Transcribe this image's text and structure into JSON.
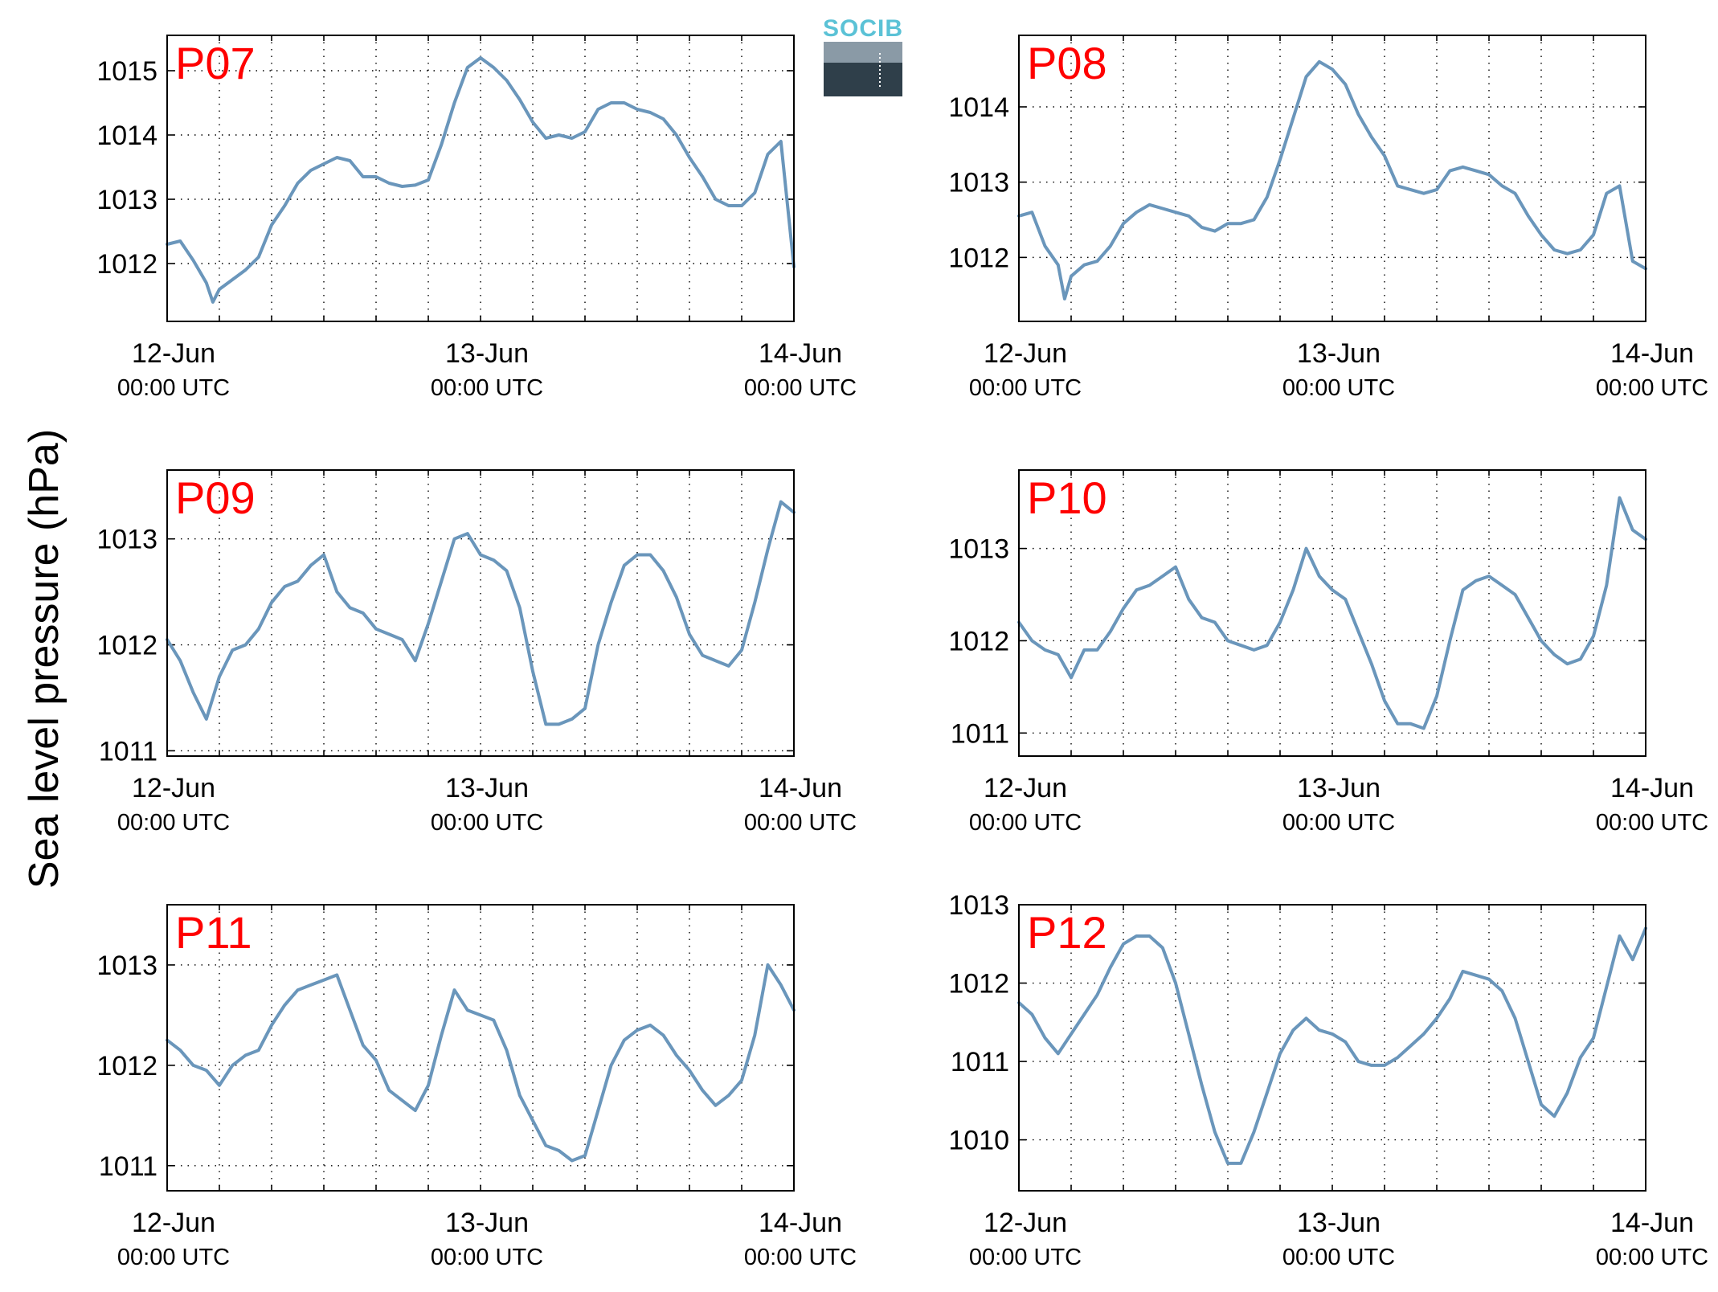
{
  "figure": {
    "ylabel": "Sea level pressure (hPa)",
    "line_color": "#6a96bb",
    "label_color": "#ff0000",
    "logo": {
      "text": "SOCIB",
      "text_color": "#5bc2d6",
      "top_color": "#8a9aa6",
      "bottom_color": "#2f3f4a"
    }
  },
  "chart_data": [
    {
      "type": "line",
      "panel": "P07",
      "label": "P07",
      "x_ticks": [
        {
          "v": 0,
          "date": "12-Jun",
          "time": "00:00 UTC"
        },
        {
          "v": 24,
          "date": "13-Jun",
          "time": "00:00 UTC"
        },
        {
          "v": 48,
          "date": "14-Jun",
          "time": "00:00 UTC"
        }
      ],
      "xlim": [
        0,
        48
      ],
      "ylim": [
        1011.1,
        1015.55
      ],
      "y_ticks": [
        1012,
        1013,
        1014,
        1015
      ],
      "grid": true,
      "series": [
        {
          "x": [
            0,
            1,
            2,
            3,
            3.5,
            4,
            5,
            6,
            7,
            8,
            9,
            10,
            11,
            12,
            13,
            14,
            15,
            16,
            17,
            18,
            19,
            20,
            21,
            22,
            23,
            24,
            25,
            26,
            27,
            28,
            29,
            30,
            31,
            32,
            33,
            34,
            35,
            36,
            37,
            38,
            39,
            40,
            41,
            42,
            43,
            44,
            45,
            46,
            47,
            48
          ],
          "y": [
            1012.3,
            1012.35,
            1012.05,
            1011.7,
            1011.4,
            1011.6,
            1011.75,
            1011.9,
            1012.1,
            1012.6,
            1012.9,
            1013.25,
            1013.45,
            1013.55,
            1013.65,
            1013.6,
            1013.35,
            1013.35,
            1013.25,
            1013.2,
            1013.22,
            1013.3,
            1013.85,
            1014.5,
            1015.05,
            1015.2,
            1015.05,
            1014.85,
            1014.55,
            1014.2,
            1013.95,
            1014.0,
            1013.95,
            1014.05,
            1014.4,
            1014.5,
            1014.5,
            1014.4,
            1014.35,
            1014.25,
            1014.0,
            1013.65,
            1013.35,
            1013.0,
            1012.9,
            1012.9,
            1013.1,
            1013.7,
            1013.9,
            1011.95
          ]
        }
      ]
    },
    {
      "type": "line",
      "panel": "P08",
      "label": "P08",
      "x_ticks": [
        {
          "v": 0,
          "date": "12-Jun",
          "time": "00:00 UTC"
        },
        {
          "v": 24,
          "date": "13-Jun",
          "time": "00:00 UTC"
        },
        {
          "v": 48,
          "date": "14-Jun",
          "time": "00:00 UTC"
        }
      ],
      "xlim": [
        0,
        48
      ],
      "ylim": [
        1011.15,
        1014.95
      ],
      "y_ticks": [
        1012,
        1013,
        1014
      ],
      "grid": true,
      "series": [
        {
          "x": [
            0,
            1,
            2,
            3,
            3.5,
            4,
            5,
            6,
            7,
            8,
            9,
            10,
            11,
            12,
            13,
            14,
            15,
            16,
            17,
            18,
            19,
            20,
            21,
            22,
            23,
            24,
            25,
            26,
            27,
            28,
            29,
            30,
            31,
            32,
            33,
            34,
            35,
            36,
            37,
            38,
            39,
            40,
            41,
            42,
            43,
            44,
            45,
            46,
            47,
            48
          ],
          "y": [
            1012.55,
            1012.6,
            1012.15,
            1011.9,
            1011.45,
            1011.75,
            1011.9,
            1011.95,
            1012.15,
            1012.45,
            1012.6,
            1012.7,
            1012.65,
            1012.6,
            1012.55,
            1012.4,
            1012.35,
            1012.45,
            1012.45,
            1012.5,
            1012.8,
            1013.3,
            1013.85,
            1014.4,
            1014.6,
            1014.5,
            1014.3,
            1013.9,
            1013.6,
            1013.35,
            1012.95,
            1012.9,
            1012.85,
            1012.9,
            1013.15,
            1013.2,
            1013.15,
            1013.1,
            1012.95,
            1012.85,
            1012.55,
            1012.3,
            1012.1,
            1012.05,
            1012.1,
            1012.3,
            1012.85,
            1012.95,
            1011.95,
            1011.85
          ]
        }
      ]
    },
    {
      "type": "line",
      "panel": "P09",
      "label": "P09",
      "x_ticks": [
        {
          "v": 0,
          "date": "12-Jun",
          "time": "00:00 UTC"
        },
        {
          "v": 24,
          "date": "13-Jun",
          "time": "00:00 UTC"
        },
        {
          "v": 48,
          "date": "14-Jun",
          "time": "00:00 UTC"
        }
      ],
      "xlim": [
        0,
        48
      ],
      "ylim": [
        1010.95,
        1013.65
      ],
      "y_ticks": [
        1011,
        1012,
        1013
      ],
      "grid": true,
      "series": [
        {
          "x": [
            0,
            1,
            2,
            3,
            4,
            5,
            6,
            7,
            8,
            9,
            10,
            11,
            12,
            13,
            14,
            15,
            16,
            17,
            18,
            19,
            20,
            21,
            22,
            23,
            24,
            25,
            26,
            27,
            28,
            29,
            30,
            31,
            32,
            33,
            34,
            35,
            36,
            37,
            38,
            39,
            40,
            41,
            42,
            43,
            44,
            45,
            46,
            47,
            48
          ],
          "y": [
            1012.05,
            1011.85,
            1011.55,
            1011.3,
            1011.7,
            1011.95,
            1012.0,
            1012.15,
            1012.4,
            1012.55,
            1012.6,
            1012.75,
            1012.85,
            1012.5,
            1012.35,
            1012.3,
            1012.15,
            1012.1,
            1012.05,
            1011.85,
            1012.2,
            1012.6,
            1013.0,
            1013.05,
            1012.85,
            1012.8,
            1012.7,
            1012.35,
            1011.75,
            1011.25,
            1011.25,
            1011.3,
            1011.4,
            1012.0,
            1012.4,
            1012.75,
            1012.85,
            1012.85,
            1012.7,
            1012.45,
            1012.1,
            1011.9,
            1011.85,
            1011.8,
            1011.95,
            1012.4,
            1012.9,
            1013.35,
            1013.25
          ]
        }
      ]
    },
    {
      "type": "line",
      "panel": "P10",
      "label": "P10",
      "x_ticks": [
        {
          "v": 0,
          "date": "12-Jun",
          "time": "00:00 UTC"
        },
        {
          "v": 24,
          "date": "13-Jun",
          "time": "00:00 UTC"
        },
        {
          "v": 48,
          "date": "14-Jun",
          "time": "00:00 UTC"
        }
      ],
      "xlim": [
        0,
        48
      ],
      "ylim": [
        1010.75,
        1013.85
      ],
      "y_ticks": [
        1011,
        1012,
        1013
      ],
      "grid": true,
      "series": [
        {
          "x": [
            0,
            1,
            2,
            3,
            4,
            5,
            6,
            7,
            8,
            9,
            10,
            11,
            12,
            13,
            14,
            15,
            16,
            17,
            18,
            19,
            20,
            21,
            22,
            23,
            24,
            25,
            26,
            27,
            28,
            29,
            30,
            31,
            32,
            33,
            34,
            35,
            36,
            37,
            38,
            39,
            40,
            41,
            42,
            43,
            44,
            45,
            46,
            47,
            48
          ],
          "y": [
            1012.2,
            1012.0,
            1011.9,
            1011.85,
            1011.6,
            1011.9,
            1011.9,
            1012.1,
            1012.35,
            1012.55,
            1012.6,
            1012.7,
            1012.8,
            1012.45,
            1012.25,
            1012.2,
            1012.0,
            1011.95,
            1011.9,
            1011.95,
            1012.2,
            1012.55,
            1013.0,
            1012.7,
            1012.55,
            1012.45,
            1012.1,
            1011.75,
            1011.35,
            1011.1,
            1011.1,
            1011.05,
            1011.4,
            1012.0,
            1012.55,
            1012.65,
            1012.7,
            1012.6,
            1012.5,
            1012.25,
            1012.0,
            1011.85,
            1011.75,
            1011.8,
            1012.05,
            1012.6,
            1013.55,
            1013.2,
            1013.1
          ]
        }
      ]
    },
    {
      "type": "line",
      "panel": "P11",
      "label": "P11",
      "x_ticks": [
        {
          "v": 0,
          "date": "12-Jun",
          "time": "00:00 UTC"
        },
        {
          "v": 24,
          "date": "13-Jun",
          "time": "00:00 UTC"
        },
        {
          "v": 48,
          "date": "14-Jun",
          "time": "00:00 UTC"
        }
      ],
      "xlim": [
        0,
        48
      ],
      "ylim": [
        1010.75,
        1013.6
      ],
      "y_ticks": [
        1011,
        1012,
        1013
      ],
      "grid": true,
      "series": [
        {
          "x": [
            0,
            1,
            2,
            3,
            4,
            5,
            6,
            7,
            8,
            9,
            10,
            11,
            12,
            13,
            14,
            15,
            16,
            17,
            18,
            19,
            20,
            21,
            22,
            23,
            24,
            25,
            26,
            27,
            28,
            29,
            30,
            31,
            32,
            33,
            34,
            35,
            36,
            37,
            38,
            39,
            40,
            41,
            42,
            43,
            44,
            45,
            46,
            47,
            48
          ],
          "y": [
            1012.25,
            1012.15,
            1012.0,
            1011.95,
            1011.8,
            1012.0,
            1012.1,
            1012.15,
            1012.4,
            1012.6,
            1012.75,
            1012.8,
            1012.85,
            1012.9,
            1012.55,
            1012.2,
            1012.05,
            1011.75,
            1011.65,
            1011.55,
            1011.8,
            1012.3,
            1012.75,
            1012.55,
            1012.5,
            1012.45,
            1012.15,
            1011.7,
            1011.45,
            1011.2,
            1011.15,
            1011.05,
            1011.1,
            1011.55,
            1012.0,
            1012.25,
            1012.35,
            1012.4,
            1012.3,
            1012.1,
            1011.95,
            1011.75,
            1011.6,
            1011.7,
            1011.85,
            1012.3,
            1013.0,
            1012.8,
            1012.55
          ]
        }
      ]
    },
    {
      "type": "line",
      "panel": "P12",
      "label": "P12",
      "x_ticks": [
        {
          "v": 0,
          "date": "12-Jun",
          "time": "00:00 UTC"
        },
        {
          "v": 24,
          "date": "13-Jun",
          "time": "00:00 UTC"
        },
        {
          "v": 48,
          "date": "14-Jun",
          "time": "00:00 UTC"
        }
      ],
      "xlim": [
        0,
        48
      ],
      "ylim": [
        1009.35,
        1013.0
      ],
      "y_ticks": [
        1010,
        1011,
        1012,
        1013
      ],
      "grid": true,
      "series": [
        {
          "x": [
            0,
            1,
            2,
            3,
            4,
            5,
            6,
            7,
            8,
            9,
            10,
            11,
            12,
            13,
            14,
            15,
            16,
            17,
            18,
            19,
            20,
            21,
            22,
            23,
            24,
            25,
            26,
            27,
            28,
            29,
            30,
            31,
            32,
            33,
            34,
            35,
            36,
            37,
            38,
            39,
            40,
            41,
            42,
            43,
            44,
            45,
            46,
            47,
            48
          ],
          "y": [
            1011.75,
            1011.6,
            1011.3,
            1011.1,
            1011.35,
            1011.6,
            1011.85,
            1012.2,
            1012.5,
            1012.6,
            1012.6,
            1012.45,
            1012.0,
            1011.35,
            1010.7,
            1010.1,
            1009.7,
            1009.7,
            1010.1,
            1010.6,
            1011.1,
            1011.4,
            1011.55,
            1011.4,
            1011.35,
            1011.25,
            1011.0,
            1010.95,
            1010.95,
            1011.05,
            1011.2,
            1011.35,
            1011.55,
            1011.8,
            1012.15,
            1012.1,
            1012.05,
            1011.9,
            1011.55,
            1011.0,
            1010.45,
            1010.3,
            1010.6,
            1011.05,
            1011.3,
            1011.95,
            1012.6,
            1012.3,
            1012.7
          ]
        }
      ]
    }
  ]
}
